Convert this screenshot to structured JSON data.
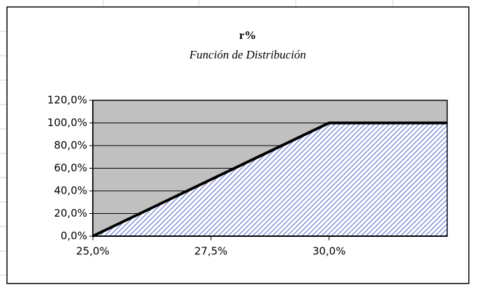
{
  "chart_data": {
    "type": "area",
    "title": "r%",
    "subtitle": "Función de Distribución",
    "x": [
      25,
      30,
      32.5
    ],
    "values": [
      0,
      100,
      100
    ],
    "color": "#5a6ed6",
    "line_color": "#000000",
    "plot_background": "#c0c0c0",
    "xlim": [
      25,
      32.5
    ],
    "xticks": [
      {
        "value": 25,
        "label": "25,0%"
      },
      {
        "value": 27.5,
        "label": "27,5%"
      },
      {
        "value": 30,
        "label": "30,0%"
      }
    ],
    "ylim": [
      0,
      120
    ],
    "yticks": [
      {
        "value": 0,
        "label": "0,0%"
      },
      {
        "value": 20,
        "label": "20,0%"
      },
      {
        "value": 40,
        "label": "40,0%"
      },
      {
        "value": 60,
        "label": "60,0%"
      },
      {
        "value": 80,
        "label": "80,0%"
      },
      {
        "value": 100,
        "label": "100,0%"
      },
      {
        "value": 120,
        "label": "120,0%"
      }
    ],
    "grid": true
  }
}
